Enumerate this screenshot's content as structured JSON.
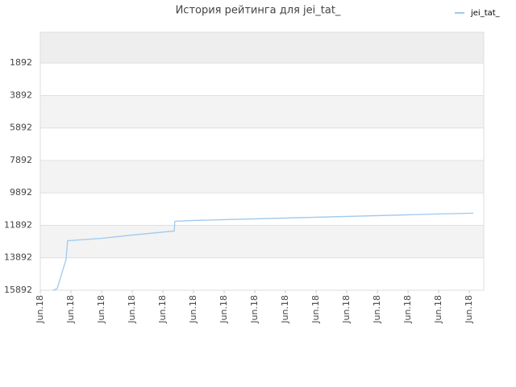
{
  "chart_data": {
    "type": "line",
    "title": "История рейтинга для jei_tat_",
    "x": [
      0.42,
      0.55,
      0.84,
      0.89,
      2.0,
      3.0,
      4.37,
      4.39,
      5.0,
      6.0,
      7.0,
      8.0,
      9.0,
      10.0,
      11.0,
      12.0,
      13.0,
      14.13
    ],
    "series": [
      {
        "name": "jei_tat_",
        "color": "#9ec9ee",
        "values": [
          15892,
          15792,
          13992,
          12842,
          12692,
          12492,
          12242,
          11642,
          11592,
          11542,
          11492,
          11442,
          11392,
          11342,
          11292,
          11242,
          11192,
          11142
        ]
      }
    ],
    "xlim": [
      0,
      14.47
    ],
    "xticks": [
      {
        "value": 0,
        "label": "Jun.18"
      },
      {
        "value": 1,
        "label": "Jun.18"
      },
      {
        "value": 2,
        "label": "Jun.18"
      },
      {
        "value": 3,
        "label": "Jun.18"
      },
      {
        "value": 4,
        "label": "Jun.18"
      },
      {
        "value": 5,
        "label": "Jun.18"
      },
      {
        "value": 6,
        "label": "Jun.18"
      },
      {
        "value": 7,
        "label": "Jun.18"
      },
      {
        "value": 8,
        "label": "Jun.18"
      },
      {
        "value": 9,
        "label": "Jun.18"
      },
      {
        "value": 10,
        "label": "Jun.18"
      },
      {
        "value": 11,
        "label": "Jun.18"
      },
      {
        "value": 12,
        "label": "Jun.18"
      },
      {
        "value": 13,
        "label": "Jun.18"
      },
      {
        "value": 14,
        "label": "Jun.18"
      }
    ],
    "ylim": [
      -8,
      15892
    ],
    "y_inverted": true,
    "yticks": [
      1892,
      3892,
      5892,
      7892,
      9892,
      11892,
      13892,
      15892
    ],
    "grid": true,
    "legend": "top-right"
  }
}
